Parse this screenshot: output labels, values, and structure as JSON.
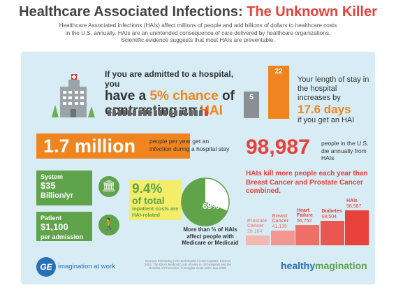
{
  "title": {
    "main": "Healthcare Associated Infections: ",
    "accent": "The Unknown Killer"
  },
  "intro": {
    "line1": "Healthcare Associated Infections (HAIs) affect millions of people and add billions of dollars to healthcare costs",
    "line2": "in the U.S. annually. HAIs are an unintended consequence of care delivered by healthcare organizations.",
    "line3": "Scientific evidence suggests that most HAIs are preventable."
  },
  "chance": {
    "line1": "If you are admitted to a hospital, you",
    "line2a": "have a ",
    "line2b": "5% chance",
    "line2c": " of",
    "line3a": "contracting an ",
    "line3b": "HAI",
    "people_total": 20,
    "people_highlighted": 1
  },
  "stay": {
    "bar_before": "5",
    "bar_after": "22",
    "text1": "Your length of stay in the hospital increases by",
    "days": "17.6 days",
    "text2": "if you get an HAI"
  },
  "infections": {
    "value": "1.7 million",
    "text": "people per year get an infection during a hospital stay"
  },
  "deaths": {
    "value": "98,987",
    "text": "people in the U.S. die annually from HAIs"
  },
  "cost_system": {
    "label": "System",
    "value": "$35",
    "unit": "Billion/yr"
  },
  "cost_patient": {
    "label": "Patient",
    "value": "$1,100",
    "unit": "per admission"
  },
  "inpatient": {
    "pct": "9.4%",
    "line": "of total",
    "desc": "inpatient costs are HAI-related"
  },
  "medicare": {
    "pct": "69%",
    "fraction": 0.69,
    "desc": "More than ⅔ of HAIs affect people with Medicare or Medicaid"
  },
  "kill": {
    "headline": "HAIs kill more people each year than Breast Cancer and Prostate Cancer combined.",
    "bars": [
      {
        "label": "Prostate Cancer",
        "value": "28,164",
        "n": 28164,
        "color": "#f4b7b2",
        "text": "#e98a84"
      },
      {
        "label": "Breast Cancer",
        "value": "41,135",
        "n": 41135,
        "color": "#f19690",
        "text": "#e8736b"
      },
      {
        "label": "Heart Failure",
        "value": "56,752",
        "n": 56752,
        "color": "#ee6f68",
        "text": "#e8403a"
      },
      {
        "label": "Diabetes",
        "value": "68,504",
        "n": 68504,
        "color": "#ea5650",
        "text": "#e8403a"
      },
      {
        "label": "HAIs",
        "value": "98,987",
        "n": 98987,
        "color": "#e8403a",
        "text": "#e8403a"
      }
    ]
  },
  "footer": {
    "logo": "GE",
    "tagline": "imagination at work",
    "sources": "Sources: Estimating HAIs and Deaths in US Hospitals, Klevens 2002. The Direct Medical Costs of HAIs in US Hospitals and the Benefits of Prevention, R Douglas Scott, CDC, Mar 2009.",
    "brand_a": "healthy",
    "brand_b": "magination"
  }
}
